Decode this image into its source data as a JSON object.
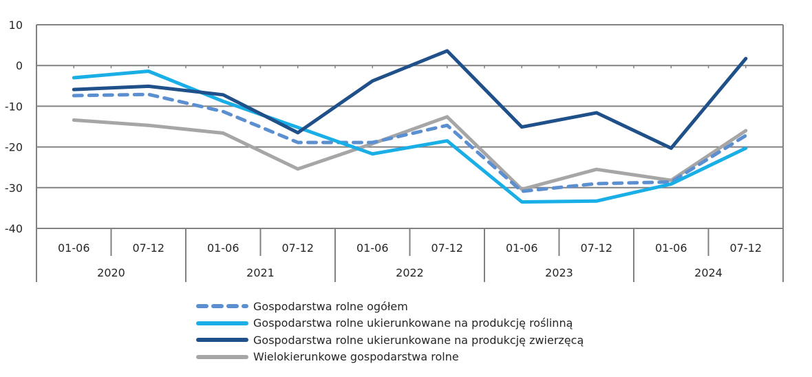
{
  "chart_data": {
    "type": "line",
    "title": "",
    "xlabel": "",
    "ylabel": "",
    "ylim": [
      -40,
      10
    ],
    "yticks": [
      10,
      0,
      -10,
      -20,
      -30,
      -40
    ],
    "grid": true,
    "categories": [
      "01-06",
      "07-12",
      "01-06",
      "07-12",
      "01-06",
      "07-12",
      "01-06",
      "07-12",
      "01-06",
      "07-12"
    ],
    "groups": [
      {
        "label": "2020",
        "span": 2
      },
      {
        "label": "2021",
        "span": 2
      },
      {
        "label": "2022",
        "span": 2
      },
      {
        "label": "2023",
        "span": 2
      },
      {
        "label": "2024",
        "span": 2
      }
    ],
    "legend_position": "bottom",
    "series": [
      {
        "name": "Gospodarstwa rolne ogółem",
        "color": "#5b8fd0",
        "dashed": true,
        "values": [
          -7.4,
          -7.1,
          -11.3,
          -18.9,
          -18.9,
          -14.7,
          -30.9,
          -29.0,
          -28.6,
          -17.2
        ]
      },
      {
        "name": "Gospodarstwa rolne ukierunkowane na produkcję roślinną",
        "color": "#1aaee6",
        "dashed": false,
        "values": [
          -3.0,
          -1.4,
          -8.8,
          -15.2,
          -21.7,
          -18.5,
          -33.5,
          -33.3,
          -29.1,
          -20.3
        ]
      },
      {
        "name": "Gospodarstwa rolne ukierunkowane na produkcję zwierzęcą",
        "color": "#1f5089",
        "dashed": false,
        "values": [
          -5.9,
          -5.1,
          -7.2,
          -16.5,
          -3.8,
          3.6,
          -15.1,
          -11.6,
          -20.3,
          1.7
        ]
      },
      {
        "name": "Wielokierunkowe gospodarstwa rolne",
        "color": "#a6a6a6",
        "dashed": false,
        "values": [
          -13.4,
          -14.7,
          -16.6,
          -25.4,
          -19.2,
          -12.6,
          -30.4,
          -25.5,
          -28.2,
          -16.0
        ]
      }
    ]
  }
}
